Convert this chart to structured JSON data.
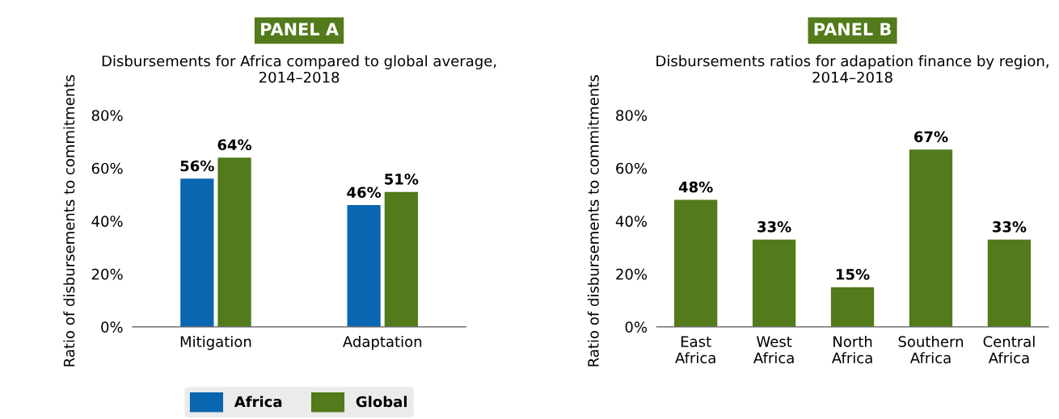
{
  "chart_data": [
    {
      "type": "bar",
      "title": "PANEL A",
      "subtitle": "Disbursements for Africa compared to global average, 2014–2018",
      "ylabel": "Ratio of disbursements to commitments",
      "categories": [
        "Mitigation",
        "Adaptation"
      ],
      "series": [
        {
          "name": "Africa",
          "color": "#0a66b0",
          "values": [
            56,
            46
          ],
          "value_labels": [
            "56%",
            "46%"
          ]
        },
        {
          "name": "Global",
          "color": "#537a1b",
          "values": [
            64,
            51
          ],
          "value_labels": [
            "64%",
            "51%"
          ]
        }
      ],
      "ylim": [
        0,
        80
      ],
      "yticks": [
        {
          "value": 0,
          "label": "0%"
        },
        {
          "value": 20,
          "label": "20%"
        },
        {
          "value": 40,
          "label": "40%"
        },
        {
          "value": 60,
          "label": "60%"
        },
        {
          "value": 80,
          "label": "80%"
        }
      ],
      "grid": false,
      "legend": "bottom"
    },
    {
      "type": "bar",
      "title": "PANEL B",
      "subtitle": "Disbursements ratios for adapation finance by region, 2014–2018",
      "ylabel": "Ratio of disbursements to commitments",
      "categories": [
        "East Africa",
        "West Africa",
        "North Africa",
        "Southern Africa",
        "Central Africa"
      ],
      "series": [
        {
          "color": "#537a1b",
          "values": [
            48,
            33,
            15,
            67,
            33
          ],
          "value_labels": [
            "48%",
            "33%",
            "15%",
            "67%",
            "33%"
          ]
        }
      ],
      "ylim": [
        0,
        80
      ],
      "yticks": [
        {
          "value": 0,
          "label": "0%"
        },
        {
          "value": 20,
          "label": "20%"
        },
        {
          "value": 40,
          "label": "40%"
        },
        {
          "value": 60,
          "label": "60%"
        },
        {
          "value": 80,
          "label": "80%"
        }
      ],
      "grid": false,
      "legend": false
    }
  ]
}
